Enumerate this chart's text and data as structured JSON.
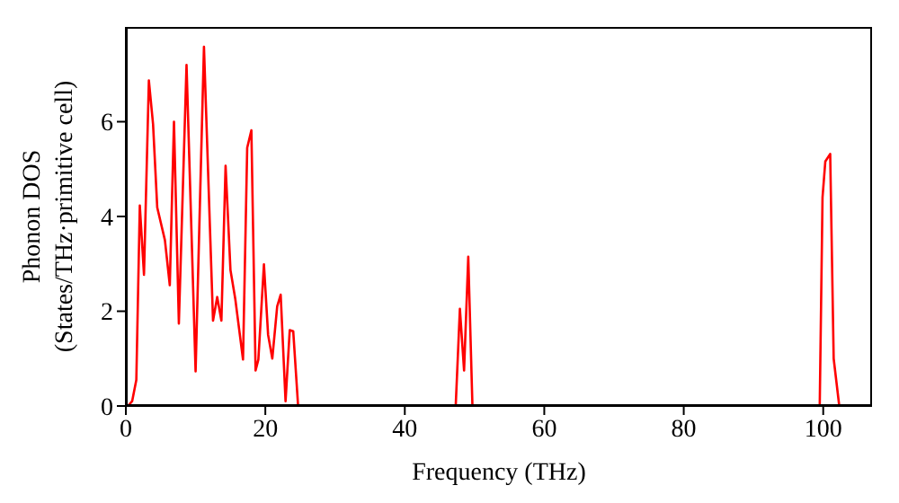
{
  "chart_data": {
    "type": "line",
    "xlabel": "Frequency (THz)",
    "ylabel": "Phonon DOS\n(States/THz·primitive cell)",
    "xlim": [
      0,
      107
    ],
    "xticks": [
      0,
      20,
      40,
      60,
      80,
      100
    ],
    "ylim": [
      0,
      8
    ],
    "yticks": [
      0,
      2,
      4,
      6
    ],
    "x": [
      0.3,
      0.9,
      1.5,
      2.0,
      2.6,
      3.3,
      3.9,
      4.5,
      5.6,
      6.3,
      6.9,
      7.6,
      8.7,
      10.0,
      11.2,
      12.5,
      13.1,
      13.7,
      14.3,
      15.0,
      15.7,
      16.8,
      17.4,
      18.0,
      18.6,
      19.0,
      19.8,
      20.4,
      21.0,
      21.7,
      22.2,
      22.9,
      23.5,
      24.0,
      24.7,
      47.3,
      47.9,
      48.5,
      49.1,
      49.7,
      99.5,
      99.9,
      100.3,
      101.0,
      101.5,
      102.3
    ],
    "series": [
      {
        "color": "#ff0000",
        "values": [
          0,
          0.1,
          0.55,
          4.23,
          2.77,
          6.87,
          5.95,
          4.19,
          3.5,
          2.55,
          6.0,
          1.74,
          7.2,
          0.73,
          7.58,
          1.8,
          2.3,
          1.8,
          5.07,
          2.87,
          2.25,
          0.98,
          5.45,
          5.82,
          0.75,
          0.98,
          2.99,
          1.5,
          1.0,
          2.1,
          2.35,
          0.1,
          1.6,
          1.58,
          0,
          0,
          2.05,
          0.75,
          3.15,
          0,
          0,
          4.4,
          5.16,
          5.32,
          1.0,
          0
        ]
      }
    ]
  }
}
